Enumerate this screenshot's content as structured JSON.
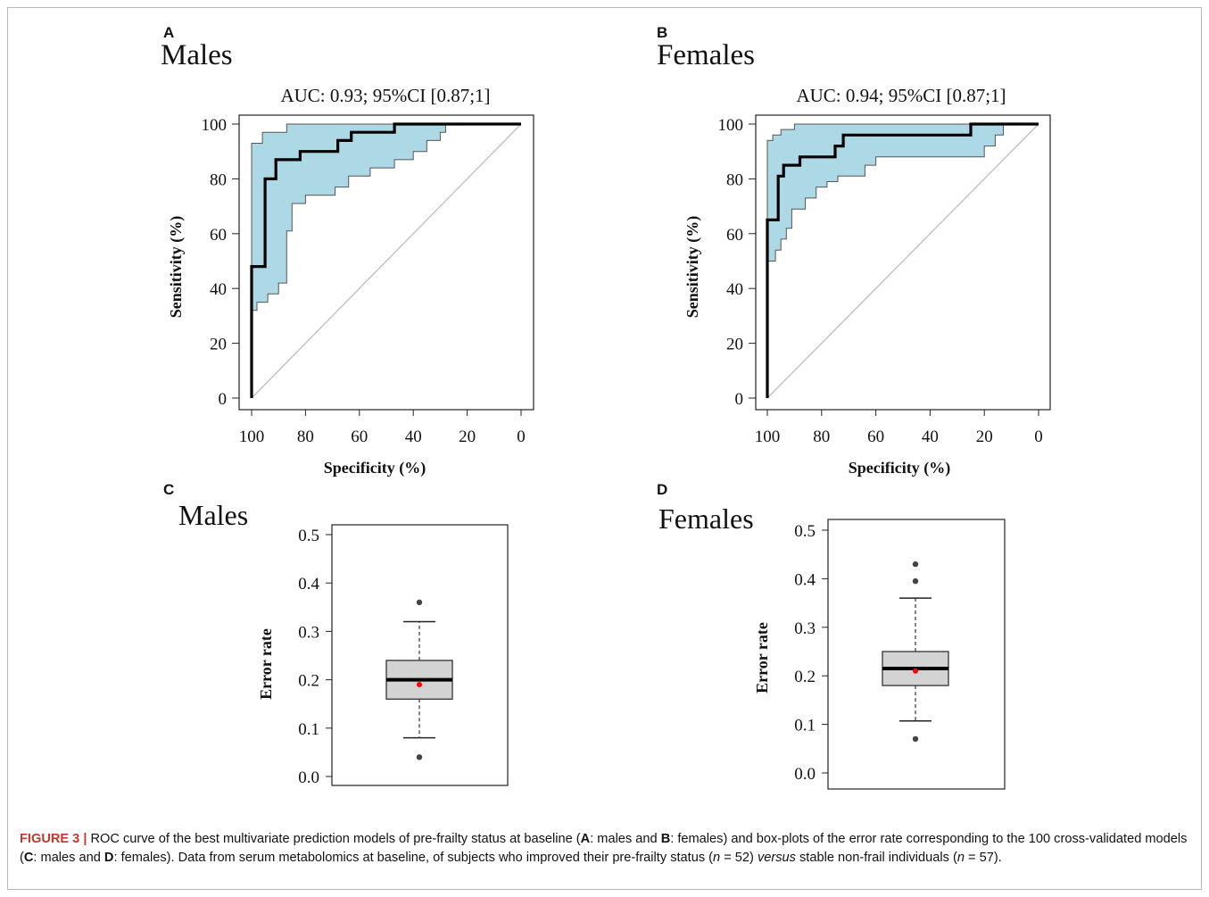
{
  "figure": {
    "caption": {
      "label": "FIGURE 3 |",
      "segments": [
        {
          "t": " ROC curve of the best multivariate prediction models of pre-frailty status at baseline ("
        },
        {
          "t": "A",
          "b": true
        },
        {
          "t": ": males and "
        },
        {
          "t": "B",
          "b": true
        },
        {
          "t": ": females) and box-plots of the error rate corresponding to the 100 cross-validated models ("
        },
        {
          "t": "C",
          "b": true
        },
        {
          "t": ": males and "
        },
        {
          "t": "D",
          "b": true
        },
        {
          "t": ": females). Data from serum metabolomics at baseline, of subjects who improved their pre-frailty status ("
        },
        {
          "t": "n",
          "i": true
        },
        {
          "t": " = 52) "
        },
        {
          "t": "versus",
          "i": true
        },
        {
          "t": " stable non-frail individuals ("
        },
        {
          "t": "n",
          "i": true
        },
        {
          "t": " = 57)."
        }
      ]
    }
  },
  "chart_data": [
    {
      "panel": "A",
      "type": "line",
      "title": "Males",
      "subtitle": "AUC: 0.93; 95%CI [0.87;1]",
      "xlabel": "Specificity (%)",
      "ylabel": "Sensitivity (%)",
      "xlim": [
        100,
        0
      ],
      "ylim": [
        0,
        100
      ],
      "xticks": [
        100,
        80,
        60,
        40,
        20,
        0
      ],
      "yticks": [
        0,
        20,
        40,
        60,
        80,
        100
      ],
      "colors": {
        "ci_fill": "#add8e6",
        "curve": "#000000",
        "diagonal": "#bdbdbd"
      },
      "roc": [
        [
          100,
          0
        ],
        [
          100,
          48
        ],
        [
          95,
          48
        ],
        [
          95,
          80
        ],
        [
          91,
          80
        ],
        [
          91,
          87
        ],
        [
          82,
          87
        ],
        [
          82,
          90
        ],
        [
          68,
          90
        ],
        [
          68,
          94
        ],
        [
          63,
          94
        ],
        [
          63,
          97
        ],
        [
          47,
          97
        ],
        [
          47,
          100
        ],
        [
          0,
          100
        ]
      ],
      "ci_upper": [
        [
          100,
          32
        ],
        [
          100,
          93
        ],
        [
          96,
          93
        ],
        [
          96,
          97
        ],
        [
          87,
          97
        ],
        [
          87,
          100
        ],
        [
          0,
          100
        ]
      ],
      "ci_lower": [
        [
          100,
          32
        ],
        [
          98,
          32
        ],
        [
          98,
          35
        ],
        [
          94,
          35
        ],
        [
          94,
          38
        ],
        [
          90,
          38
        ],
        [
          90,
          42
        ],
        [
          87,
          42
        ],
        [
          87,
          61
        ],
        [
          85,
          61
        ],
        [
          85,
          71
        ],
        [
          80,
          71
        ],
        [
          80,
          74
        ],
        [
          69,
          74
        ],
        [
          69,
          77
        ],
        [
          64,
          77
        ],
        [
          64,
          81
        ],
        [
          56,
          81
        ],
        [
          56,
          84
        ],
        [
          47,
          84
        ],
        [
          47,
          87
        ],
        [
          40,
          87
        ],
        [
          40,
          90
        ],
        [
          35,
          90
        ],
        [
          35,
          94
        ],
        [
          30,
          94
        ],
        [
          30,
          97
        ],
        [
          28,
          97
        ],
        [
          28,
          100
        ],
        [
          0,
          100
        ]
      ],
      "diagonal": [
        [
          100,
          0
        ],
        [
          0,
          100
        ]
      ]
    },
    {
      "panel": "B",
      "type": "line",
      "title": "Females",
      "subtitle": "AUC: 0.94; 95%CI [0.87;1]",
      "xlabel": "Specificity (%)",
      "ylabel": "Sensitivity (%)",
      "xlim": [
        100,
        0
      ],
      "ylim": [
        0,
        100
      ],
      "xticks": [
        100,
        80,
        60,
        40,
        20,
        0
      ],
      "yticks": [
        0,
        20,
        40,
        60,
        80,
        100
      ],
      "colors": {
        "ci_fill": "#add8e6",
        "curve": "#000000",
        "diagonal": "#bdbdbd"
      },
      "roc": [
        [
          100,
          0
        ],
        [
          100,
          65
        ],
        [
          96,
          65
        ],
        [
          96,
          81
        ],
        [
          94,
          81
        ],
        [
          94,
          85
        ],
        [
          88,
          85
        ],
        [
          88,
          88
        ],
        [
          75,
          88
        ],
        [
          75,
          92
        ],
        [
          72,
          92
        ],
        [
          72,
          96
        ],
        [
          25,
          96
        ],
        [
          25,
          100
        ],
        [
          0,
          100
        ]
      ],
      "ci_upper": [
        [
          100,
          50
        ],
        [
          100,
          94
        ],
        [
          98,
          94
        ],
        [
          98,
          96
        ],
        [
          95,
          96
        ],
        [
          95,
          98
        ],
        [
          90,
          98
        ],
        [
          90,
          100
        ],
        [
          0,
          100
        ]
      ],
      "ci_lower": [
        [
          100,
          50
        ],
        [
          97,
          50
        ],
        [
          97,
          54
        ],
        [
          95,
          54
        ],
        [
          95,
          58
        ],
        [
          93,
          58
        ],
        [
          93,
          62
        ],
        [
          91,
          62
        ],
        [
          91,
          69
        ],
        [
          86,
          69
        ],
        [
          86,
          73
        ],
        [
          82,
          73
        ],
        [
          82,
          77
        ],
        [
          78,
          77
        ],
        [
          78,
          79
        ],
        [
          74,
          79
        ],
        [
          74,
          81
        ],
        [
          64,
          81
        ],
        [
          64,
          85
        ],
        [
          60,
          85
        ],
        [
          60,
          88
        ],
        [
          40,
          88
        ],
        [
          40,
          88
        ],
        [
          20,
          88
        ],
        [
          20,
          92
        ],
        [
          16,
          92
        ],
        [
          16,
          96
        ],
        [
          13,
          96
        ],
        [
          13,
          100
        ],
        [
          0,
          100
        ]
      ],
      "diagonal": [
        [
          100,
          0
        ],
        [
          0,
          100
        ]
      ]
    },
    {
      "panel": "C",
      "type": "box",
      "title": "Males",
      "ylabel": "Error rate",
      "ylim": [
        0,
        0.5
      ],
      "yticks": [
        "0.0",
        "0.1",
        "0.2",
        "0.3",
        "0.4",
        "0.5"
      ],
      "colors": {
        "box": "#d3d3d3",
        "mean": "#ff0000",
        "median": "#000000"
      },
      "box": {
        "whisker_low": 0.08,
        "q1": 0.16,
        "median": 0.2,
        "q3": 0.24,
        "whisker_high": 0.32,
        "mean": 0.19,
        "outliers": [
          0.36,
          0.04
        ]
      }
    },
    {
      "panel": "D",
      "type": "box",
      "title": "Females",
      "ylabel": "Error rate",
      "ylim": [
        0,
        0.5
      ],
      "yticks": [
        "0.0",
        "0.1",
        "0.2",
        "0.3",
        "0.4",
        "0.5"
      ],
      "colors": {
        "box": "#d3d3d3",
        "mean": "#ff0000",
        "median": "#000000"
      },
      "box": {
        "whisker_low": 0.107,
        "q1": 0.18,
        "median": 0.215,
        "q3": 0.25,
        "whisker_high": 0.36,
        "mean": 0.21,
        "outliers": [
          0.43,
          0.395,
          0.07
        ]
      }
    }
  ]
}
